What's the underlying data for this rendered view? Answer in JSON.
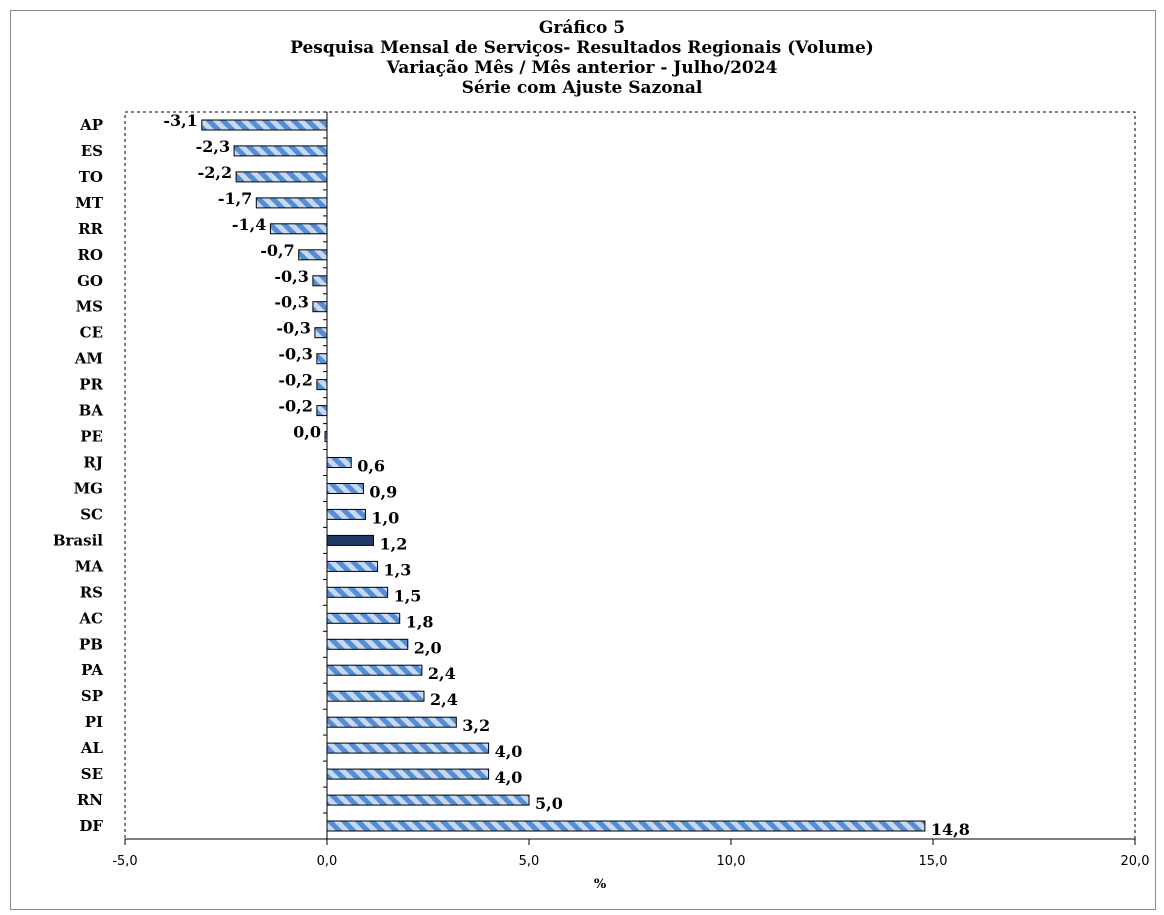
{
  "chart_data": {
    "type": "bar",
    "orientation": "horizontal",
    "title_lines": [
      "Gráfico 5",
      "Pesquisa Mensal de Serviços- Resultados Regionais (Volume)",
      "Variação Mês / Mês anterior - Julho/2024",
      "Série com Ajuste Sazonal"
    ],
    "xlabel": "%",
    "xlim": [
      -5,
      20
    ],
    "xticks": [
      "-5,0",
      "0,0",
      "5,0",
      "10,0",
      "15,0",
      "20,0"
    ],
    "grid": false,
    "legend": "none",
    "highlight_category": "Brasil",
    "colors": {
      "bar_light": "#c6d9f1",
      "bar_stripe": "#558ed5",
      "bar_highlight": "#1f3864",
      "bar_outline": "#000000"
    },
    "categories": [
      "AP",
      "ES",
      "TO",
      "MT",
      "RR",
      "RO",
      "GO",
      "MS",
      "CE",
      "AM",
      "PR",
      "BA",
      "PE",
      "RJ",
      "MG",
      "SC",
      "Brasil",
      "MA",
      "RS",
      "AC",
      "PB",
      "PA",
      "SP",
      "PI",
      "AL",
      "SE",
      "RN",
      "DF"
    ],
    "values": [
      -3.1,
      -2.3,
      -2.2,
      -1.7,
      -1.4,
      -0.7,
      -0.3,
      -0.3,
      -0.3,
      -0.3,
      -0.2,
      -0.2,
      0.0,
      0.6,
      0.9,
      1.0,
      1.2,
      1.3,
      1.5,
      1.8,
      2.0,
      2.4,
      2.4,
      3.2,
      4.0,
      4.0,
      5.0,
      14.8
    ],
    "plot_values": [
      -3.1,
      -2.3,
      -2.25,
      -1.75,
      -1.4,
      -0.7,
      -0.35,
      -0.35,
      -0.3,
      -0.25,
      -0.25,
      -0.25,
      -0.05,
      0.6,
      0.9,
      0.95,
      1.15,
      1.25,
      1.5,
      1.8,
      2.0,
      2.35,
      2.4,
      3.2,
      4.0,
      4.0,
      5.0,
      14.8
    ],
    "data_labels": [
      "-3,1",
      "-2,3",
      "-2,2",
      "-1,7",
      "-1,4",
      "-0,7",
      "-0,3",
      "-0,3",
      "-0,3",
      "-0,3",
      "-0,2",
      "-0,2",
      "0,0",
      "0,6",
      "0,9",
      "1,0",
      "1,2",
      "1,3",
      "1,5",
      "1,8",
      "2,0",
      "2,4",
      "2,4",
      "3,2",
      "4,0",
      "4,0",
      "5,0",
      "14,8"
    ]
  }
}
